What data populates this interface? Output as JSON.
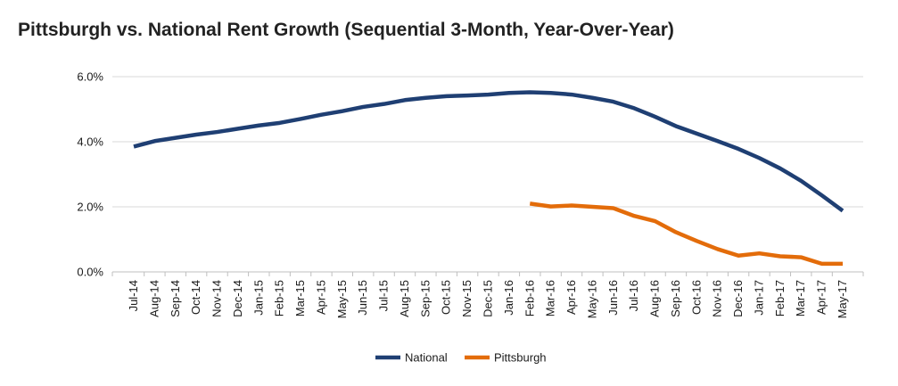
{
  "chart_data": {
    "type": "line",
    "title": "Pittsburgh vs. National Rent Growth (Sequential 3-Month, Year-Over-Year)",
    "xlabel": "",
    "ylabel": "",
    "ylim": [
      0,
      6
    ],
    "y_ticks": [
      "0.0%",
      "2.0%",
      "4.0%",
      "6.0%"
    ],
    "y_tick_values": [
      0,
      2,
      4,
      6
    ],
    "grid": "horizontal",
    "legend_position": "bottom",
    "categories": [
      "Jul-14",
      "Aug-14",
      "Sep-14",
      "Oct-14",
      "Nov-14",
      "Dec-14",
      "Jan-15",
      "Feb-15",
      "Mar-15",
      "Apr-15",
      "May-15",
      "Jun-15",
      "Jul-15",
      "Aug-15",
      "Sep-15",
      "Oct-15",
      "Nov-15",
      "Dec-15",
      "Jan-16",
      "Feb-16",
      "Mar-16",
      "Apr-16",
      "May-16",
      "Jun-16",
      "Jul-16",
      "Aug-16",
      "Sep-16",
      "Oct-16",
      "Nov-16",
      "Dec-16",
      "Jan-17",
      "Feb-17",
      "Mar-17",
      "Apr-17",
      "May-17"
    ],
    "series": [
      {
        "name": "National",
        "color": "#1f3f73",
        "values": [
          3.85,
          4.02,
          4.12,
          4.22,
          4.3,
          4.4,
          4.5,
          4.58,
          4.7,
          4.83,
          4.94,
          5.07,
          5.16,
          5.28,
          5.35,
          5.4,
          5.42,
          5.45,
          5.5,
          5.52,
          5.5,
          5.45,
          5.35,
          5.23,
          5.03,
          4.77,
          4.48,
          4.25,
          4.02,
          3.78,
          3.5,
          3.18,
          2.8,
          2.35,
          1.88
        ]
      },
      {
        "name": "Pittsburgh",
        "color": "#e36c0a",
        "values": [
          null,
          null,
          null,
          null,
          null,
          null,
          null,
          null,
          null,
          null,
          null,
          null,
          null,
          null,
          null,
          null,
          null,
          null,
          null,
          2.1,
          2.01,
          2.04,
          2.0,
          1.96,
          1.72,
          1.56,
          1.22,
          0.95,
          0.7,
          0.5,
          0.57,
          0.48,
          0.45,
          0.25,
          0.25
        ]
      }
    ]
  }
}
